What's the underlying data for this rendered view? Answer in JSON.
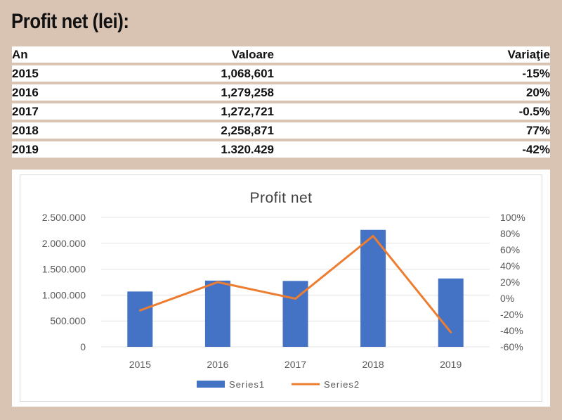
{
  "title": "Profit net (lei):",
  "table": {
    "headers": [
      "An",
      "Valoare",
      "Variaţie"
    ],
    "rows": [
      [
        "2015",
        "1,068,601",
        "-15%"
      ],
      [
        "2016",
        "1,279,258",
        "20%"
      ],
      [
        "2017",
        "1,272,721",
        "-0.5%"
      ],
      [
        "2018",
        "2,258,871",
        "77%"
      ],
      [
        "2019",
        "1.320.429",
        "-42%"
      ]
    ]
  },
  "chart_data": {
    "type": "bar",
    "title": "Profit net",
    "categories": [
      "2015",
      "2016",
      "2017",
      "2018",
      "2019"
    ],
    "series": [
      {
        "name": "Series1",
        "type": "bar",
        "axis": "left",
        "values": [
          1068601,
          1279258,
          1272721,
          2258871,
          1320429
        ]
      },
      {
        "name": "Series2",
        "type": "line",
        "axis": "right",
        "values": [
          -15,
          20,
          -0.5,
          77,
          -42
        ]
      }
    ],
    "y_left": {
      "min": 0,
      "max": 2500000,
      "ticks": [
        0,
        500000,
        1000000,
        1500000,
        2000000,
        2500000
      ],
      "tick_labels": [
        "0",
        "500.000",
        "1.000.000",
        "1.500.000",
        "2.000.000",
        "2.500.000"
      ]
    },
    "y_right": {
      "min": -60,
      "max": 100,
      "ticks": [
        -60,
        -40,
        -20,
        0,
        20,
        40,
        60,
        80,
        100
      ],
      "tick_labels": [
        "-60%",
        "-40%",
        "-20%",
        "0%",
        "20%",
        "40%",
        "60%",
        "80%",
        "100%"
      ]
    },
    "grid": true,
    "legend": "bottom",
    "colors": {
      "bar": "#4472c4",
      "line": "#ed7d31"
    }
  }
}
